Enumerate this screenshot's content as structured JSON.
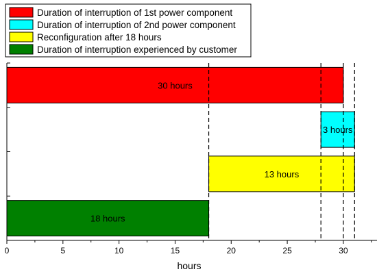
{
  "chart_data": {
    "type": "bar",
    "orientation": "horizontal",
    "xlabel": "hours",
    "ylabel": "",
    "title": "",
    "xlim": [
      0,
      33
    ],
    "x_ticks": [
      0,
      5,
      10,
      15,
      20,
      25,
      30
    ],
    "grid": false,
    "legend_position": "top-left",
    "bars": [
      {
        "name": "Duration of interruption of 1st power component",
        "start": 0,
        "end": 30,
        "label": "30 hours",
        "color": "#ff0000"
      },
      {
        "name": "Duration of interruption of 2nd power component",
        "start": 28,
        "end": 31,
        "label": "3 hours",
        "color": "#00ffff"
      },
      {
        "name": "Reconfiguration after 18 hours",
        "start": 18,
        "end": 31,
        "label": "13 hours",
        "color": "#ffff00"
      },
      {
        "name": "Duration of interruption experienced by customer",
        "start": 0,
        "end": 18,
        "label": "18 hours",
        "color": "#008000"
      }
    ],
    "reference_lines": [
      18,
      28,
      30,
      31
    ]
  }
}
